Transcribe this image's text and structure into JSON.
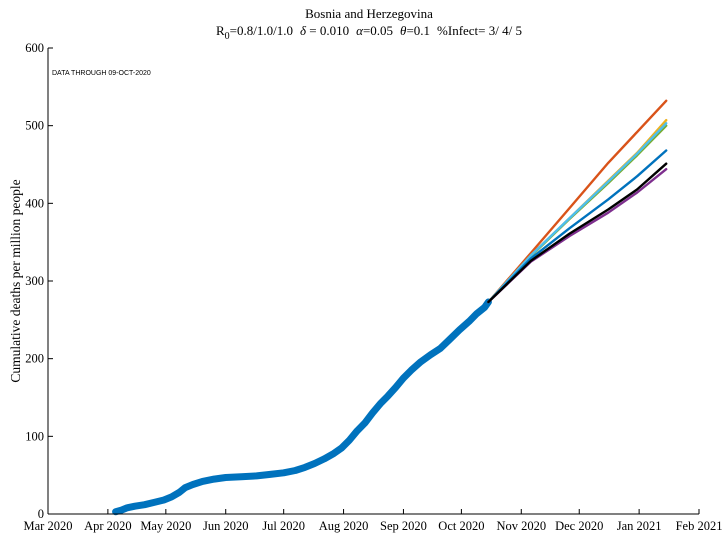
{
  "chart_data": {
    "type": "line",
    "title": "Bosnia and Herzegovina",
    "subtitle": {
      "r0_symbol": "R",
      "r0_subscript": "0",
      "r0_values": "=0.8/1.0/1.0",
      "delta_symbol": "δ",
      "delta_value": " = 0.010",
      "alpha_symbol": "α",
      "alpha_value": "=0.05",
      "theta_symbol": "θ",
      "theta_value": "=0.1",
      "infect_text": "%Infect= 3/ 4/ 5"
    },
    "annotation": "DATA THROUGH 09-OCT-2020",
    "xlabel": "",
    "ylabel": "Cumulative deaths per million people",
    "ylim": [
      0,
      600
    ],
    "yticks": [
      0,
      100,
      200,
      300,
      400,
      500,
      600
    ],
    "xlim_days": [
      0,
      337
    ],
    "xticks": [
      {
        "label": "Mar 2020",
        "day": 0
      },
      {
        "label": "Apr 2020",
        "day": 31
      },
      {
        "label": "May 2020",
        "day": 61
      },
      {
        "label": "Jun 2020",
        "day": 92
      },
      {
        "label": "Jul 2020",
        "day": 122
      },
      {
        "label": "Aug 2020",
        "day": 153
      },
      {
        "label": "Sep 2020",
        "day": 184
      },
      {
        "label": "Oct 2020",
        "day": 214
      },
      {
        "label": "Nov 2020",
        "day": 245
      },
      {
        "label": "Dec 2020",
        "day": 275
      },
      {
        "label": "Jan 2021",
        "day": 306
      },
      {
        "label": "Feb 2021",
        "day": 337
      }
    ],
    "grid": false,
    "series": [
      {
        "role": "observed",
        "color": "#0072BD",
        "points": [
          [
            35,
            3
          ],
          [
            38,
            5
          ],
          [
            41,
            8
          ],
          [
            45,
            10
          ],
          [
            50,
            12
          ],
          [
            55,
            15
          ],
          [
            60,
            18
          ],
          [
            64,
            22
          ],
          [
            68,
            28
          ],
          [
            71,
            34
          ],
          [
            75,
            38
          ],
          [
            80,
            42
          ],
          [
            86,
            45
          ],
          [
            92,
            47
          ],
          [
            100,
            48
          ],
          [
            108,
            49
          ],
          [
            115,
            51
          ],
          [
            122,
            53
          ],
          [
            128,
            56
          ],
          [
            133,
            60
          ],
          [
            138,
            65
          ],
          [
            143,
            71
          ],
          [
            148,
            78
          ],
          [
            152,
            85
          ],
          [
            156,
            95
          ],
          [
            160,
            107
          ],
          [
            164,
            117
          ],
          [
            168,
            130
          ],
          [
            172,
            142
          ],
          [
            176,
            152
          ],
          [
            180,
            163
          ],
          [
            184,
            175
          ],
          [
            188,
            185
          ],
          [
            193,
            196
          ],
          [
            198,
            205
          ],
          [
            203,
            213
          ],
          [
            208,
            225
          ],
          [
            213,
            237
          ],
          [
            218,
            248
          ],
          [
            222,
            258
          ],
          [
            226,
            266
          ],
          [
            228,
            273
          ]
        ]
      },
      {
        "role": "projection",
        "color": "#D95319",
        "points": [
          [
            228,
            273
          ],
          [
            250,
            336
          ],
          [
            270,
            394
          ],
          [
            290,
            452
          ],
          [
            305,
            492
          ],
          [
            320,
            532
          ]
        ]
      },
      {
        "role": "projection",
        "color": "#EDB120",
        "points": [
          [
            228,
            273
          ],
          [
            250,
            333
          ],
          [
            270,
            381
          ],
          [
            290,
            429
          ],
          [
            305,
            465
          ],
          [
            320,
            507
          ]
        ]
      },
      {
        "role": "projection",
        "color": "#77AC30",
        "points": [
          [
            228,
            273
          ],
          [
            250,
            332
          ],
          [
            270,
            380
          ],
          [
            290,
            426
          ],
          [
            305,
            462
          ],
          [
            320,
            500
          ]
        ]
      },
      {
        "role": "projection",
        "color": "#4DBEEE",
        "points": [
          [
            228,
            273
          ],
          [
            250,
            333
          ],
          [
            270,
            381
          ],
          [
            290,
            428
          ],
          [
            305,
            464
          ],
          [
            320,
            503
          ]
        ]
      },
      {
        "role": "projection",
        "color": "#0072BD",
        "points": [
          [
            228,
            273
          ],
          [
            250,
            329
          ],
          [
            270,
            368
          ],
          [
            290,
            405
          ],
          [
            305,
            435
          ],
          [
            320,
            468
          ]
        ]
      },
      {
        "role": "projection",
        "color": "#7E2F8E",
        "points": [
          [
            228,
            273
          ],
          [
            250,
            325
          ],
          [
            270,
            358
          ],
          [
            290,
            388
          ],
          [
            305,
            414
          ],
          [
            320,
            444
          ]
        ]
      },
      {
        "role": "projection",
        "color": "#000000",
        "points": [
          [
            228,
            273
          ],
          [
            250,
            326
          ],
          [
            270,
            361
          ],
          [
            290,
            392
          ],
          [
            305,
            418
          ],
          [
            320,
            451
          ]
        ]
      }
    ]
  }
}
